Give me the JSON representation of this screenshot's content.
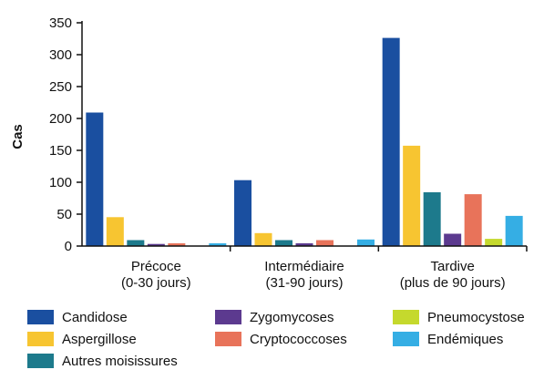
{
  "chart_data": {
    "type": "bar",
    "title": "",
    "xlabel": "",
    "ylabel": "Cas",
    "ylim": [
      0,
      350
    ],
    "yticks": [
      0,
      50,
      100,
      150,
      200,
      250,
      300,
      350
    ],
    "grid": false,
    "legend_position": "bottom",
    "categories": [
      {
        "line1": "Précoce",
        "line2": "(0-30 jours)"
      },
      {
        "line1": "Intermédiaire",
        "line2": "(31-90 jours)"
      },
      {
        "line1": "Tardive",
        "line2": "(plus de 90 jours)"
      }
    ],
    "series": [
      {
        "name": "Candidose",
        "color": "#1a4fa0",
        "values": [
          210,
          104,
          327
        ]
      },
      {
        "name": "Aspergillose",
        "color": "#f7c531",
        "values": [
          46,
          21,
          158
        ]
      },
      {
        "name": "Autres moisissures",
        "color": "#1d7a8c",
        "values": [
          10,
          10,
          85
        ]
      },
      {
        "name": "Zygomycoses",
        "color": "#5c3a8f",
        "values": [
          4,
          5,
          20
        ]
      },
      {
        "name": "Cryptococcoses",
        "color": "#e8735a",
        "values": [
          5,
          10,
          82
        ]
      },
      {
        "name": "Pneumocystose",
        "color": "#c5d92d",
        "values": [
          0,
          0,
          12
        ]
      },
      {
        "name": "Endémiques",
        "color": "#35aee4",
        "values": [
          5,
          11,
          48
        ]
      }
    ],
    "legend_columns": [
      [
        "Candidose",
        "Aspergillose",
        "Autres moisissures"
      ],
      [
        "Zygomycoses",
        "Cryptococcoses"
      ],
      [
        "Pneumocystose",
        "Endémiques"
      ]
    ]
  }
}
